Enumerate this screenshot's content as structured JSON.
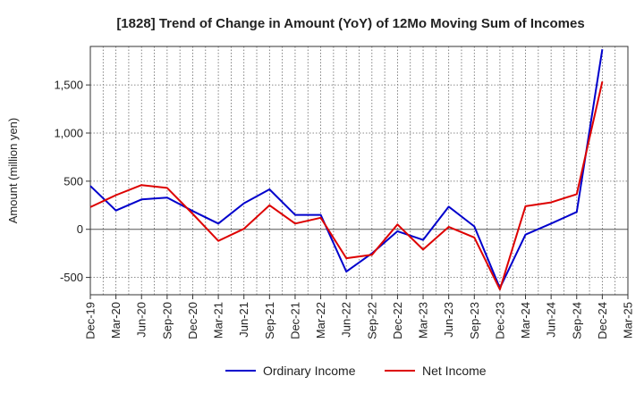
{
  "chart_data": {
    "type": "line",
    "title": "[1828]  Trend of Change in Amount (YoY) of 12Mo Moving Sum of Incomes",
    "xlabel": "",
    "ylabel": "Amount (million yen)",
    "ylim": [
      -680,
      1900
    ],
    "yticks": [
      -500,
      0,
      500,
      1000,
      1500
    ],
    "ytick_labels": [
      "-500",
      "0",
      "500",
      "1,000",
      "1,500"
    ],
    "grid": true,
    "legend_position": "bottom-center",
    "x": [
      "Dec-19",
      "Mar-20",
      "Jun-20",
      "Sep-20",
      "Dec-20",
      "Mar-21",
      "Jun-21",
      "Sep-21",
      "Dec-21",
      "Mar-22",
      "Jun-22",
      "Sep-22",
      "Dec-22",
      "Mar-23",
      "Jun-23",
      "Sep-23",
      "Dec-23",
      "Mar-24",
      "Jun-24",
      "Sep-24",
      "Dec-24",
      "Mar-25"
    ],
    "series": [
      {
        "name": "Ordinary Income",
        "color": "#0000cc",
        "values": [
          450,
          195,
          310,
          330,
          190,
          60,
          270,
          415,
          150,
          150,
          -440,
          -250,
          -20,
          -110,
          235,
          30,
          -610,
          -55,
          60,
          180,
          1870,
          null
        ]
      },
      {
        "name": "Net Income",
        "color": "#dd0000",
        "values": [
          230,
          355,
          460,
          430,
          160,
          -120,
          5,
          250,
          60,
          120,
          -300,
          -265,
          50,
          -210,
          25,
          -85,
          -625,
          240,
          280,
          365,
          1535,
          null
        ]
      }
    ]
  }
}
